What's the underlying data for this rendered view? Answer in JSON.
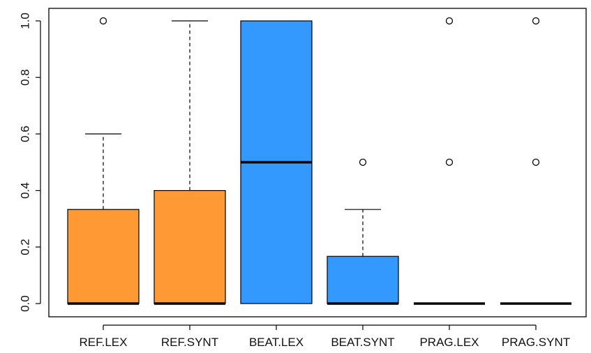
{
  "chart_data": {
    "type": "boxplot",
    "title": "",
    "xlabel": "",
    "ylabel": "",
    "ylim": [
      0,
      1
    ],
    "yticks": [
      "0.0",
      "0.2",
      "0.4",
      "0.6",
      "0.8",
      "1.0"
    ],
    "grid": false,
    "categories": [
      "REF.LEX",
      "REF.SYNT",
      "BEAT.LEX",
      "BEAT.SYNT",
      "PRAG.LEX",
      "PRAG.SYNT"
    ],
    "boxes": [
      {
        "label": "REF.LEX",
        "color": "#FF9933",
        "min": 0,
        "q1": 0,
        "median": 0,
        "q3": 0.333,
        "max": 0.6,
        "outliers": [
          1.0
        ]
      },
      {
        "label": "REF.SYNT",
        "color": "#FF9933",
        "min": 0,
        "q1": 0,
        "median": 0,
        "q3": 0.4,
        "max": 1.0,
        "outliers": []
      },
      {
        "label": "BEAT.LEX",
        "color": "#3399FF",
        "min": 0,
        "q1": 0,
        "median": 0.5,
        "q3": 1.0,
        "max": 1.0,
        "outliers": []
      },
      {
        "label": "BEAT.SYNT",
        "color": "#3399FF",
        "min": 0,
        "q1": 0,
        "median": 0,
        "q3": 0.167,
        "max": 0.333,
        "outliers": [
          0.5
        ]
      },
      {
        "label": "PRAG.LEX",
        "color": "#FF9933",
        "min": 0,
        "q1": 0,
        "median": 0,
        "q3": 0,
        "max": 0,
        "outliers": [
          0.5,
          1.0
        ]
      },
      {
        "label": "PRAG.SYNT",
        "color": "#FF9933",
        "min": 0,
        "q1": 0,
        "median": 0,
        "q3": 0,
        "max": 0,
        "outliers": [
          0.5,
          1.0
        ]
      }
    ]
  }
}
